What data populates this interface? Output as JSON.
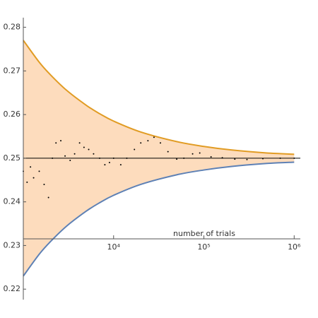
{
  "chart_data": {
    "type": "log_band_scatter",
    "x_label": "number of trials",
    "xlim": [
      1000,
      1170000
    ],
    "ylim": [
      0.2176,
      0.2822
    ],
    "log_x": true,
    "xticks": [
      {
        "value": 10000,
        "label": "10⁴"
      },
      {
        "value": 100000,
        "label": "10⁵"
      },
      {
        "value": 1000000,
        "label": "10⁶"
      }
    ],
    "yticks": [
      0.22,
      0.23,
      0.24,
      0.25,
      0.26,
      0.27,
      0.28
    ],
    "reference_line": 0.25,
    "band_color": "#fddcbd",
    "bounds_x": [
      1000,
      1500,
      2000,
      3000,
      5000,
      7000,
      10000,
      20000,
      50000,
      100000,
      200000,
      500000,
      1000000
    ],
    "upper": {
      "color": "#e19c24",
      "values": [
        0.277,
        0.272,
        0.2691,
        0.2656,
        0.2621,
        0.2602,
        0.2585,
        0.256,
        0.2538,
        0.2527,
        0.2519,
        0.2512,
        0.2509
      ]
    },
    "lower": {
      "color": "#5e81b5",
      "values": [
        0.223,
        0.228,
        0.2309,
        0.2344,
        0.2379,
        0.2398,
        0.2415,
        0.244,
        0.2462,
        0.2473,
        0.2481,
        0.2488,
        0.2491
      ]
    },
    "trials": {
      "color": "#000000",
      "x": [
        1000,
        1100,
        1200,
        1300,
        1500,
        1700,
        1900,
        2100,
        2300,
        2600,
        2900,
        3300,
        3700,
        4200,
        4700,
        5300,
        6000,
        7000,
        8000,
        9000,
        10000,
        12000,
        14000,
        17000,
        20000,
        24000,
        28000,
        33000,
        40000,
        50000,
        60000,
        75000,
        90000,
        120000,
        160000,
        220000,
        300000,
        450000,
        700000,
        1000000
      ],
      "values": [
        0.247,
        0.2445,
        0.248,
        0.2455,
        0.247,
        0.244,
        0.241,
        0.25,
        0.2535,
        0.254,
        0.2505,
        0.2495,
        0.251,
        0.2535,
        0.2525,
        0.252,
        0.251,
        0.25,
        0.2485,
        0.249,
        0.25,
        0.2485,
        0.25,
        0.252,
        0.2535,
        0.254,
        0.2548,
        0.2535,
        0.2515,
        0.2498,
        0.25,
        0.251,
        0.2512,
        0.2503,
        0.2501,
        0.2498,
        0.2497,
        0.2499,
        0.25,
        0.25
      ]
    }
  }
}
